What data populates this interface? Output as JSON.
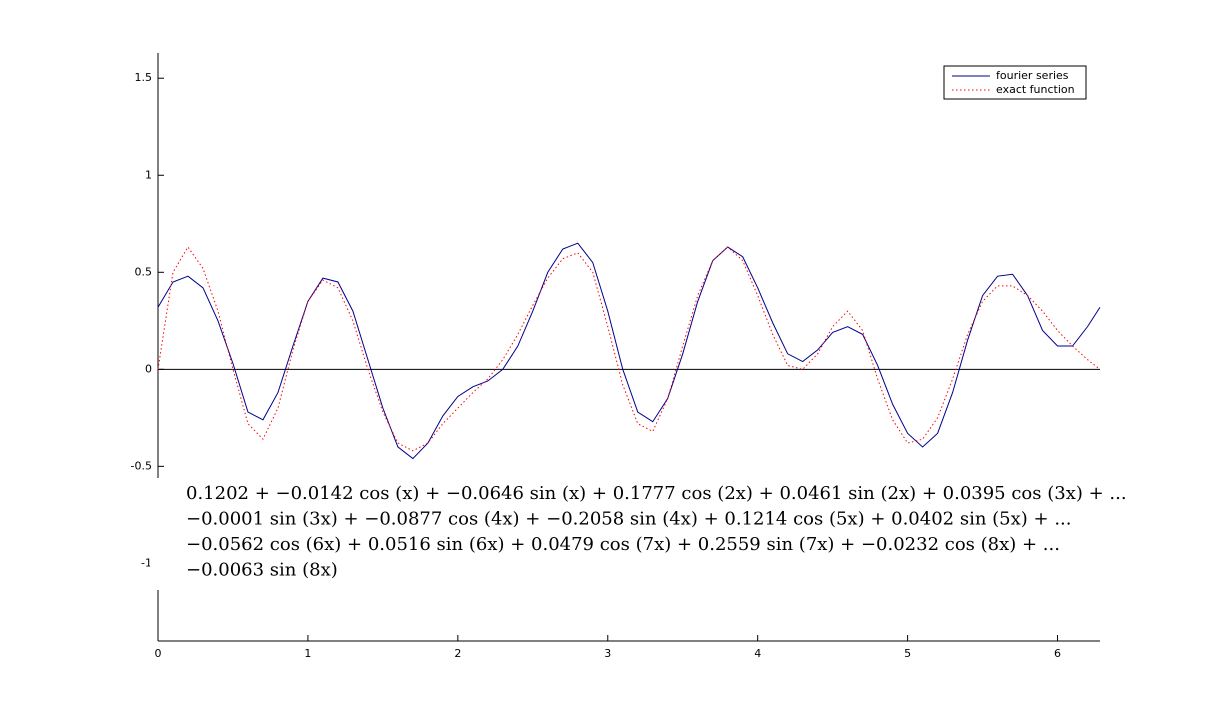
{
  "chart_data": {
    "type": "line",
    "x": [
      0,
      0.1,
      0.2,
      0.3,
      0.4,
      0.5,
      0.6,
      0.7,
      0.8,
      0.9,
      1.0,
      1.1,
      1.2,
      1.3,
      1.4,
      1.5,
      1.6,
      1.7,
      1.8,
      1.9,
      2.0,
      2.1,
      2.2,
      2.3,
      2.4,
      2.5,
      2.6,
      2.7,
      2.8,
      2.9,
      3.0,
      3.1,
      3.2,
      3.3,
      3.4,
      3.5,
      3.6,
      3.7,
      3.8,
      3.9,
      4.0,
      4.1,
      4.2,
      4.3,
      4.4,
      4.5,
      4.6,
      4.7,
      4.8,
      4.9,
      5.0,
      5.1,
      5.2,
      5.3,
      5.4,
      5.5,
      5.6,
      5.7,
      5.8,
      5.9,
      6.0,
      6.1,
      6.2,
      6.2832
    ],
    "series": [
      {
        "name": "fourier series",
        "color": "#00008b",
        "dash": "solid",
        "values": [
          0.32,
          0.45,
          0.48,
          0.42,
          0.25,
          0.03,
          -0.22,
          -0.26,
          -0.12,
          0.12,
          0.35,
          0.47,
          0.45,
          0.3,
          0.05,
          -0.2,
          -0.4,
          -0.46,
          -0.38,
          -0.24,
          -0.14,
          -0.09,
          -0.06,
          0.0,
          0.12,
          0.3,
          0.5,
          0.62,
          0.65,
          0.55,
          0.3,
          0.0,
          -0.22,
          -0.27,
          -0.15,
          0.08,
          0.35,
          0.56,
          0.63,
          0.58,
          0.42,
          0.24,
          0.08,
          0.04,
          0.1,
          0.19,
          0.22,
          0.18,
          0.02,
          -0.18,
          -0.33,
          -0.4,
          -0.33,
          -0.12,
          0.15,
          0.38,
          0.48,
          0.49,
          0.38,
          0.2,
          0.12,
          0.12,
          0.22,
          0.32
        ]
      },
      {
        "name": "exact function",
        "color": "#ff0000",
        "dash": "dotted",
        "values": [
          0,
          0.5,
          0.63,
          0.52,
          0.3,
          0.0,
          -0.28,
          -0.36,
          -0.2,
          0.1,
          0.35,
          0.46,
          0.42,
          0.25,
          0.0,
          -0.22,
          -0.38,
          -0.42,
          -0.38,
          -0.28,
          -0.2,
          -0.12,
          -0.05,
          0.05,
          0.18,
          0.33,
          0.47,
          0.57,
          0.6,
          0.5,
          0.22,
          -0.08,
          -0.28,
          -0.32,
          -0.15,
          0.12,
          0.38,
          0.56,
          0.63,
          0.56,
          0.38,
          0.18,
          0.02,
          0.0,
          0.08,
          0.22,
          0.3,
          0.2,
          -0.05,
          -0.26,
          -0.38,
          -0.36,
          -0.25,
          -0.05,
          0.18,
          0.35,
          0.43,
          0.43,
          0.38,
          0.3,
          0.2,
          0.12,
          0.05,
          0.0
        ]
      }
    ],
    "xlim": [
      0,
      6.2832
    ],
    "ylim": [
      -1.4,
      1.63
    ],
    "xticks": [
      0,
      1,
      2,
      3,
      4,
      5,
      6
    ],
    "yticks": [
      -1,
      -0.5,
      0,
      0.5,
      1,
      1.5
    ],
    "hline": 0,
    "legend": "upper right",
    "annotation": [
      "0.1202 + −0.0142 cos (x) + −0.0646 sin (x) + 0.1777 cos (2x) + 0.0461 sin (2x) + 0.0395 cos (3x) + ...",
      "−0.0001 sin (3x) + −0.0877 cos (4x) + −0.2058 sin (4x) + 0.1214 cos (5x) + 0.0402 sin (5x) + ...",
      "−0.0562 cos (6x) + 0.0516 sin (6x) + 0.0479 cos (7x) + 0.2559 sin (7x) + −0.0232 cos (8x) + ...",
      "−0.0063 sin (8x)"
    ]
  }
}
